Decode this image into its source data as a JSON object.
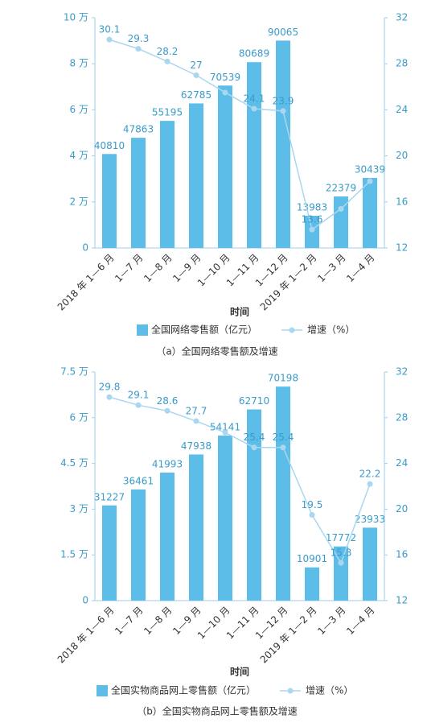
{
  "chart_data": [
    {
      "type": "bar",
      "categories": [
        "2018 年 1—6 月",
        "1—7 月",
        "1—8 月",
        "1—9 月",
        "1—10 月",
        "1—11 月",
        "1—12 月",
        "2019 年 1—2 月",
        "1—3 月",
        "1—4 月"
      ],
      "series": [
        {
          "name": "全国网络零售额（亿元）",
          "color": "#5bbde8",
          "values": [
            40810,
            47863,
            55195,
            62785,
            70539,
            80689,
            90065,
            13983,
            22379,
            30439
          ]
        },
        {
          "name": "增速（%）",
          "type": "line",
          "axis": "y2",
          "color": "#a9d7ef",
          "values": [
            30.1,
            29.3,
            28.2,
            27,
            25.5,
            24.1,
            23.9,
            13.6,
            15.4,
            17.8
          ],
          "value_labels": [
            "30.1",
            "29.3",
            "28.2",
            "27",
            null,
            "24.1",
            "23.9",
            "13.6",
            null,
            null
          ]
        }
      ],
      "ylim": [
        0,
        100000
      ],
      "yticks": [
        0,
        {
          "value": 20000,
          "label": "2 万"
        },
        {
          "value": 40000,
          "label": "4 万"
        },
        {
          "value": 60000,
          "label": "6 万"
        },
        {
          "value": 80000,
          "label": "8 万"
        },
        {
          "value": 100000,
          "label": "10 万"
        }
      ],
      "y2lim": [
        12,
        32
      ],
      "y2ticks": [
        12,
        16,
        20,
        24,
        28,
        32
      ],
      "x_label": "时间",
      "caption": "（a）全国网络零售额及增速"
    },
    {
      "type": "bar",
      "categories": [
        "2018 年 1—6 月",
        "1—7 月",
        "1—8 月",
        "1—9 月",
        "1—10 月",
        "1—11 月",
        "1—12 月",
        "2019 年 1—2 月",
        "1—3 月",
        "1—4 月"
      ],
      "series": [
        {
          "name": "全国实物商品网上零售额（亿元）",
          "color": "#5bbde8",
          "values": [
            31227,
            36461,
            41993,
            47938,
            54141,
            62710,
            70198,
            10901,
            17772,
            23933
          ]
        },
        {
          "name": "增速（%）",
          "type": "line",
          "axis": "y2",
          "color": "#a9d7ef",
          "values": [
            29.8,
            29.1,
            28.6,
            27.7,
            26.7,
            25.4,
            25.4,
            19.5,
            15.3,
            22.2
          ],
          "value_labels": [
            "29.8",
            "29.1",
            "28.6",
            "27.7",
            null,
            "25.4",
            "25.4",
            "19.5",
            "15.3",
            "22.2"
          ]
        }
      ],
      "ylim": [
        0,
        75000
      ],
      "yticks": [
        0,
        {
          "value": 15000,
          "label": "1.5 万"
        },
        {
          "value": 30000,
          "label": "3 万"
        },
        {
          "value": 45000,
          "label": "4.5 万"
        },
        {
          "value": 60000,
          "label": "6 万"
        },
        {
          "value": 75000,
          "label": "7.5 万"
        }
      ],
      "y2lim": [
        12,
        32
      ],
      "y2ticks": [
        12,
        16,
        20,
        24,
        28,
        32
      ],
      "x_label": "时间",
      "caption": "（b）全国实物商品网上零售额及增速"
    }
  ]
}
